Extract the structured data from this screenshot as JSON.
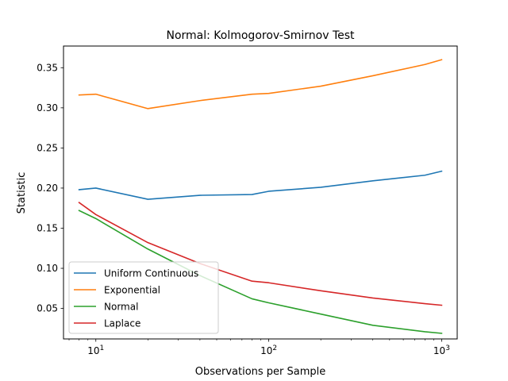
{
  "chart_data": {
    "type": "line",
    "title": "Normal: Kolmogorov-Smirnov Test",
    "xlabel": "Observations per Sample",
    "ylabel": "Statistic",
    "xscale": "log",
    "xlim": [
      6.5,
      1230
    ],
    "ylim": [
      0.012,
      0.377
    ],
    "x_ticks": [
      10,
      100,
      1000
    ],
    "x_tick_labels": [
      "10^1",
      "10^2",
      "10^3"
    ],
    "y_ticks": [
      0.05,
      0.1,
      0.15,
      0.2,
      0.25,
      0.3,
      0.35
    ],
    "y_tick_labels": [
      "0.05",
      "0.10",
      "0.15",
      "0.20",
      "0.25",
      "0.30",
      "0.35"
    ],
    "legend_position": "lower-left",
    "grid": false,
    "x": [
      8,
      10,
      20,
      40,
      80,
      100,
      200,
      400,
      800,
      1000
    ],
    "series": [
      {
        "name": "Uniform Continuous",
        "color": "#1f77b4",
        "values": [
          0.198,
          0.2,
          0.186,
          0.191,
          0.192,
          0.196,
          0.201,
          0.209,
          0.216,
          0.221
        ]
      },
      {
        "name": "Exponential",
        "color": "#ff7f0e",
        "values": [
          0.316,
          0.317,
          0.299,
          0.309,
          0.317,
          0.318,
          0.327,
          0.34,
          0.354,
          0.36
        ]
      },
      {
        "name": "Normal",
        "color": "#2ca02c",
        "values": [
          0.172,
          0.162,
          0.124,
          0.091,
          0.062,
          0.057,
          0.043,
          0.029,
          0.021,
          0.019
        ]
      },
      {
        "name": "Laplace",
        "color": "#d62728",
        "values": [
          0.182,
          0.167,
          0.132,
          0.106,
          0.084,
          0.082,
          0.072,
          0.063,
          0.056,
          0.054
        ]
      }
    ]
  }
}
